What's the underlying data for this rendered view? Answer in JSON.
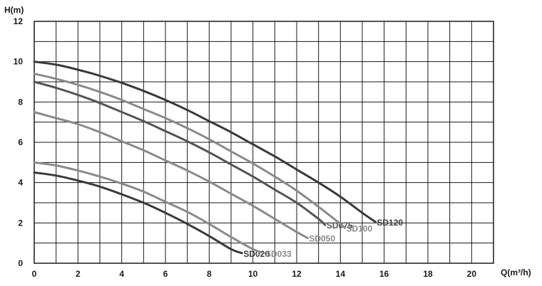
{
  "chart_data": {
    "type": "line",
    "title": "",
    "ylabel": "H(m)",
    "xlabel": "Q(m³/h)",
    "xlim": [
      0,
      21
    ],
    "ylim": [
      0,
      12
    ],
    "grid": true,
    "x_ticks": [
      "0",
      "2",
      "4",
      "6",
      "8",
      "10",
      "12",
      "14",
      "16",
      "18",
      "20"
    ],
    "y_ticks": [
      "0",
      "2",
      "4",
      "6",
      "8",
      "10",
      "12"
    ],
    "series": [
      {
        "name": "SD020",
        "color": "#3a3a3a",
        "points": [
          [
            0,
            4.5
          ],
          [
            1,
            4.35
          ],
          [
            2,
            4.1
          ],
          [
            3,
            3.8
          ],
          [
            4,
            3.42
          ],
          [
            5,
            3.0
          ],
          [
            6,
            2.5
          ],
          [
            7,
            1.95
          ],
          [
            8,
            1.35
          ],
          [
            9,
            0.7
          ],
          [
            9.5,
            0.5
          ]
        ]
      },
      {
        "name": "SD033",
        "color": "#8a8a8a",
        "points": [
          [
            0,
            5.0
          ],
          [
            1,
            4.85
          ],
          [
            2,
            4.6
          ],
          [
            3,
            4.3
          ],
          [
            4,
            3.95
          ],
          [
            5,
            3.55
          ],
          [
            6,
            3.05
          ],
          [
            7,
            2.55
          ],
          [
            8,
            1.95
          ],
          [
            9,
            1.3
          ],
          [
            10,
            0.7
          ],
          [
            10.5,
            0.5
          ]
        ]
      },
      {
        "name": "SD050",
        "color": "#8a8a8a",
        "points": [
          [
            0,
            7.5
          ],
          [
            1,
            7.2
          ],
          [
            2,
            6.9
          ],
          [
            3,
            6.5
          ],
          [
            4,
            6.05
          ],
          [
            5,
            5.6
          ],
          [
            6,
            5.1
          ],
          [
            7,
            4.6
          ],
          [
            8,
            4.05
          ],
          [
            9,
            3.45
          ],
          [
            10,
            2.85
          ],
          [
            11,
            2.2
          ],
          [
            12,
            1.55
          ],
          [
            12.5,
            1.25
          ]
        ]
      },
      {
        "name": "SD075",
        "color": "#555555",
        "points": [
          [
            0,
            9.0
          ],
          [
            1,
            8.7
          ],
          [
            2,
            8.35
          ],
          [
            3,
            7.95
          ],
          [
            4,
            7.5
          ],
          [
            5,
            7.05
          ],
          [
            6,
            6.55
          ],
          [
            7,
            6.05
          ],
          [
            8,
            5.5
          ],
          [
            9,
            4.9
          ],
          [
            10,
            4.3
          ],
          [
            11,
            3.65
          ],
          [
            12,
            3.0
          ],
          [
            13,
            2.2
          ],
          [
            13.3,
            1.9
          ]
        ]
      },
      {
        "name": "SD100",
        "color": "#8a8a8a",
        "points": [
          [
            0,
            9.4
          ],
          [
            1,
            9.15
          ],
          [
            2,
            8.85
          ],
          [
            3,
            8.5
          ],
          [
            4,
            8.1
          ],
          [
            5,
            7.65
          ],
          [
            6,
            7.2
          ],
          [
            7,
            6.7
          ],
          [
            8,
            6.15
          ],
          [
            9,
            5.55
          ],
          [
            10,
            4.95
          ],
          [
            11,
            4.3
          ],
          [
            12,
            3.6
          ],
          [
            13,
            2.8
          ],
          [
            14,
            1.95
          ],
          [
            14.2,
            1.75
          ]
        ]
      },
      {
        "name": "SD120",
        "color": "#3a3a3a",
        "points": [
          [
            0,
            10.0
          ],
          [
            1,
            9.85
          ],
          [
            2,
            9.6
          ],
          [
            3,
            9.3
          ],
          [
            4,
            8.95
          ],
          [
            5,
            8.55
          ],
          [
            6,
            8.1
          ],
          [
            7,
            7.6
          ],
          [
            8,
            7.05
          ],
          [
            9,
            6.5
          ],
          [
            10,
            5.9
          ],
          [
            11,
            5.3
          ],
          [
            12,
            4.65
          ],
          [
            13,
            4.0
          ],
          [
            14,
            3.3
          ],
          [
            15,
            2.5
          ],
          [
            15.6,
            2.05
          ]
        ]
      }
    ]
  }
}
